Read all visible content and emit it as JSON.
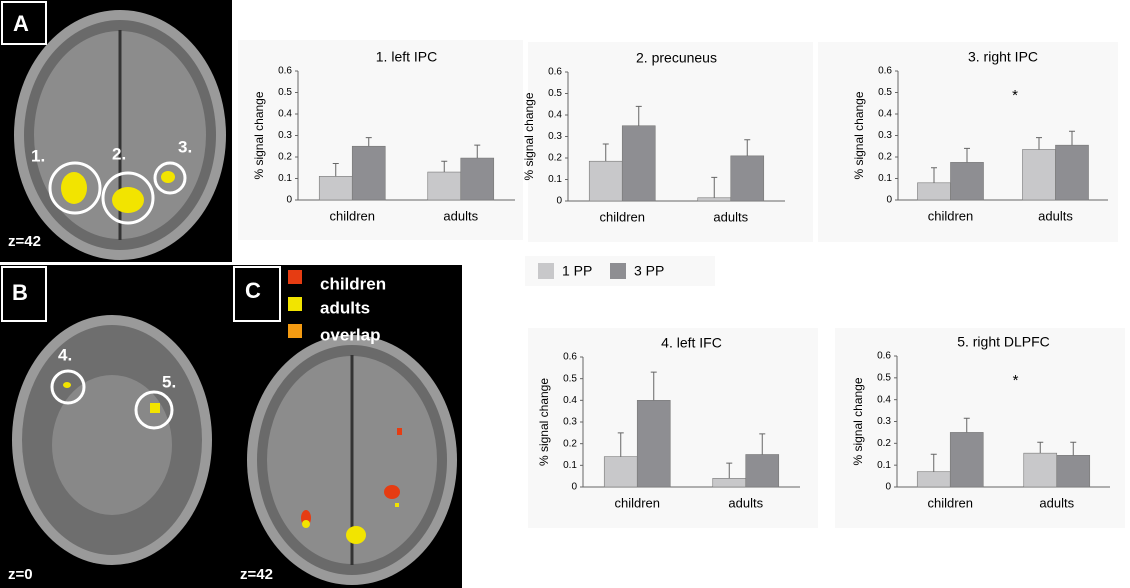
{
  "figure": {
    "panels": [
      {
        "label": "A",
        "slice": "z=42",
        "rois": [
          "1.",
          "2.",
          "3."
        ]
      },
      {
        "label": "B",
        "slice": "z=0",
        "rois": [
          "4.",
          "5."
        ]
      },
      {
        "label": "C",
        "slice": "z=42",
        "overlay_legend": [
          "children",
          "adults",
          "overlap"
        ]
      }
    ]
  },
  "chart_data": [
    {
      "type": "bar",
      "title": "1. left IPC",
      "y_label": "% signal change",
      "categories": [
        "children",
        "adults"
      ],
      "series": [
        {
          "name": "1 PP",
          "color": "#c8c8ca",
          "values": [
            0.11,
            0.13
          ],
          "errors": [
            0.06,
            0.05
          ]
        },
        {
          "name": "3 PP",
          "color": "#8e8e92",
          "values": [
            0.25,
            0.195
          ],
          "errors": [
            0.04,
            0.06
          ]
        }
      ],
      "ylim": [
        0,
        0.6
      ],
      "yticks": [
        0,
        0.1,
        0.2,
        0.3,
        0.4,
        0.5,
        0.6
      ]
    },
    {
      "type": "bar",
      "title": "2. precuneus",
      "y_label": "% signal change",
      "categories": [
        "children",
        "adults"
      ],
      "series": [
        {
          "name": "1 PP",
          "color": "#c8c8ca",
          "values": [
            0.185,
            0.015
          ],
          "errors": [
            0.08,
            0.095
          ]
        },
        {
          "name": "3 PP",
          "color": "#8e8e92",
          "values": [
            0.35,
            0.21
          ],
          "errors": [
            0.09,
            0.075
          ]
        }
      ],
      "ylim": [
        0,
        0.6
      ],
      "yticks": [
        0,
        0.1,
        0.2,
        0.3,
        0.4,
        0.5,
        0.6
      ]
    },
    {
      "type": "bar",
      "title": "3. right IPC",
      "y_label": "% signal change",
      "annotation": "*",
      "categories": [
        "children",
        "adults"
      ],
      "series": [
        {
          "name": "1 PP",
          "color": "#c8c8ca",
          "values": [
            0.08,
            0.235
          ],
          "errors": [
            0.07,
            0.055
          ]
        },
        {
          "name": "3 PP",
          "color": "#8e8e92",
          "values": [
            0.175,
            0.255
          ],
          "errors": [
            0.065,
            0.065
          ]
        }
      ],
      "ylim": [
        0,
        0.6
      ],
      "yticks": [
        0,
        0.1,
        0.2,
        0.3,
        0.4,
        0.5,
        0.6
      ]
    },
    {
      "type": "bar",
      "title": "4. left IFC",
      "y_label": "% signal change",
      "categories": [
        "children",
        "adults"
      ],
      "series": [
        {
          "name": "1 PP",
          "color": "#c8c8ca",
          "values": [
            0.14,
            0.04
          ],
          "errors": [
            0.11,
            0.07
          ]
        },
        {
          "name": "3 PP",
          "color": "#8e8e92",
          "values": [
            0.4,
            0.15
          ],
          "errors": [
            0.13,
            0.095
          ]
        }
      ],
      "ylim": [
        0,
        0.6
      ],
      "yticks": [
        0,
        0.1,
        0.2,
        0.3,
        0.4,
        0.5,
        0.6
      ]
    },
    {
      "type": "bar",
      "title": "5. right DLPFC",
      "y_label": "% signal change",
      "annotation": "*",
      "categories": [
        "children",
        "adults"
      ],
      "series": [
        {
          "name": "1 PP",
          "color": "#c8c8ca",
          "values": [
            0.07,
            0.155
          ],
          "errors": [
            0.08,
            0.05
          ]
        },
        {
          "name": "3 PP",
          "color": "#8e8e92",
          "values": [
            0.25,
            0.145
          ],
          "errors": [
            0.065,
            0.06
          ]
        }
      ],
      "ylim": [
        0,
        0.6
      ],
      "yticks": [
        0,
        0.1,
        0.2,
        0.3,
        0.4,
        0.5,
        0.6
      ]
    }
  ]
}
